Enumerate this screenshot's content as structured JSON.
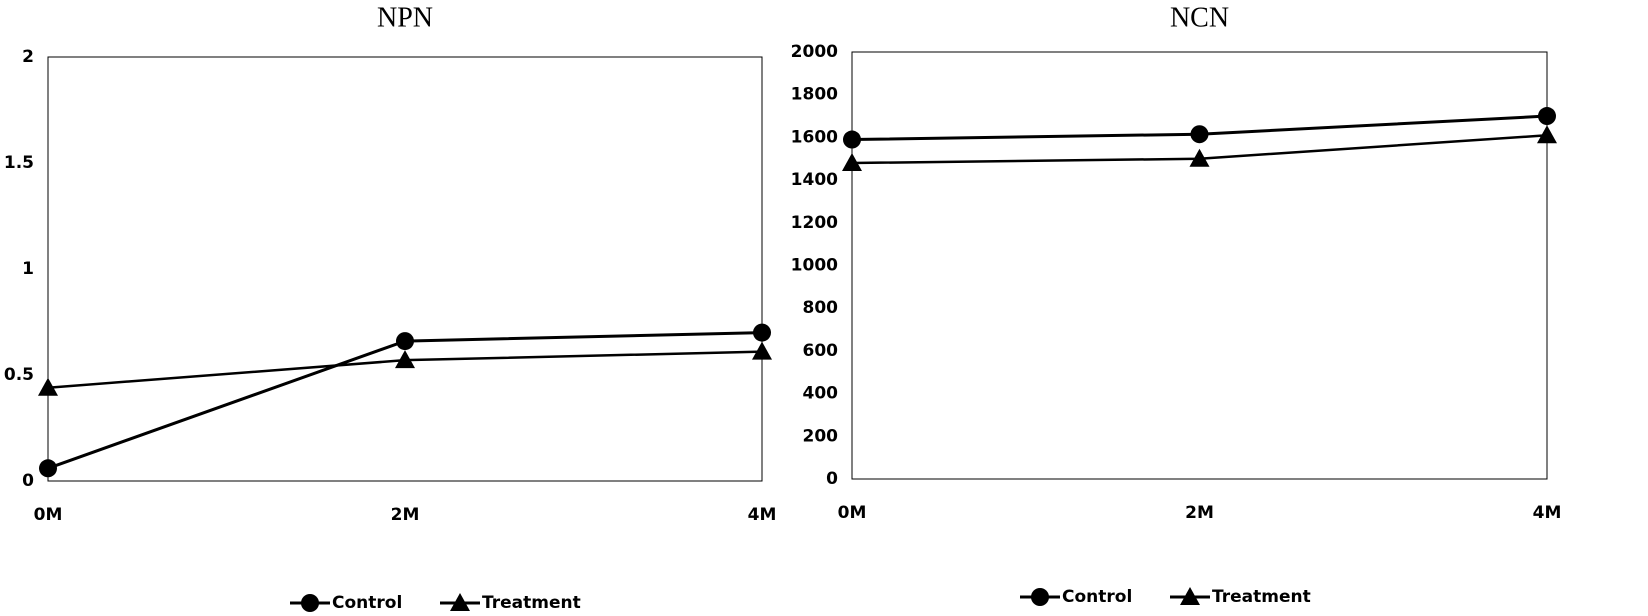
{
  "chart_data": [
    {
      "type": "line",
      "title": "NPN",
      "categories": [
        "0M",
        "2M",
        "4M"
      ],
      "series": [
        {
          "name": "Control",
          "color": "#000000",
          "marker": "circle",
          "values": [
            0.06,
            0.66,
            0.7
          ]
        },
        {
          "name": "Treatment",
          "color": "#000000",
          "marker": "triangle",
          "values": [
            0.44,
            0.57,
            0.61
          ]
        }
      ],
      "ylim": [
        0,
        2
      ],
      "yticks": [
        0,
        0.5,
        1,
        1.5,
        2
      ],
      "grid": false,
      "legend": "bottom"
    },
    {
      "type": "line",
      "title": "NCN",
      "categories": [
        "0M",
        "2M",
        "4M"
      ],
      "series": [
        {
          "name": "Control",
          "color": "#000000",
          "marker": "circle",
          "values": [
            1590,
            1615,
            1700
          ]
        },
        {
          "name": "Treatment",
          "color": "#000000",
          "marker": "triangle",
          "values": [
            1480,
            1500,
            1610
          ]
        }
      ],
      "ylim": [
        0,
        2000
      ],
      "yticks": [
        0,
        200,
        400,
        600,
        800,
        1000,
        1200,
        1400,
        1600,
        1800,
        2000
      ],
      "grid": false,
      "legend": "bottom"
    }
  ]
}
